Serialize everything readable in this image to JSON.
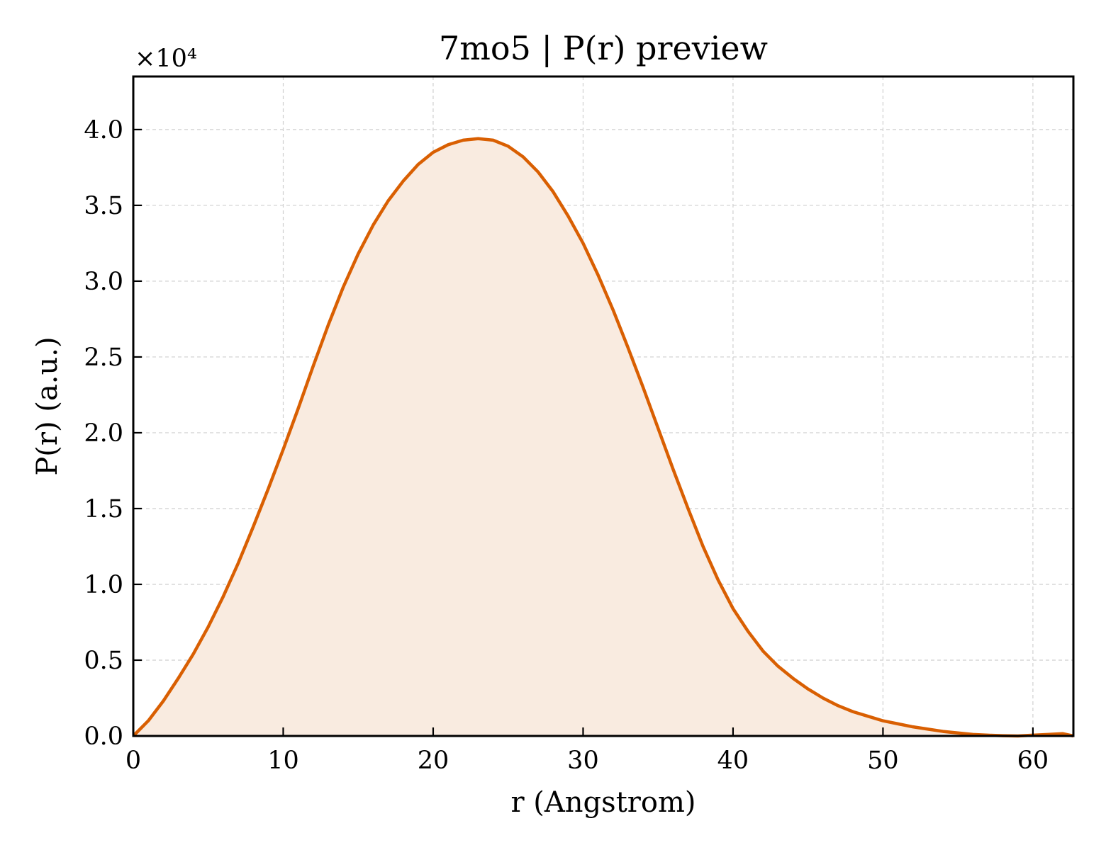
{
  "chart_data": {
    "type": "area",
    "title": "7mo5 | P(r) preview",
    "xlabel": "r (Angstrom)",
    "ylabel": "P(r) (a.u.)",
    "y_multiplier_label": "×10⁴",
    "xlim": [
      0,
      62.7
    ],
    "ylim": [
      0,
      4.35
    ],
    "xticks": [
      0,
      10,
      20,
      30,
      40,
      50,
      60
    ],
    "xtick_labels": [
      "0",
      "10",
      "20",
      "30",
      "40",
      "50",
      "60"
    ],
    "yticks": [
      0,
      0.5,
      1.0,
      1.5,
      2.0,
      2.5,
      3.0,
      3.5,
      4.0
    ],
    "ytick_labels": [
      "0.0",
      "0.5",
      "1.0",
      "1.5",
      "2.0",
      "2.5",
      "3.0",
      "3.5",
      "4.0"
    ],
    "grid": true,
    "line_color": "#d95f02",
    "fill_color": "#f9ebe0",
    "series": [
      {
        "x": [
          0,
          1,
          2,
          3,
          4,
          5,
          6,
          7,
          8,
          9,
          10,
          11,
          12,
          13,
          14,
          15,
          16,
          17,
          18,
          19,
          20,
          21,
          22,
          23,
          24,
          25,
          26,
          27,
          28,
          29,
          30,
          31,
          32,
          33,
          34,
          35,
          36,
          37,
          38,
          39,
          40,
          41,
          42,
          43,
          44,
          45,
          46,
          47,
          48,
          49,
          50,
          51,
          52,
          53,
          54,
          55,
          56,
          57,
          58,
          59,
          60,
          61,
          62,
          62.7
        ],
        "y": [
          0.0,
          0.1,
          0.23,
          0.38,
          0.54,
          0.72,
          0.92,
          1.14,
          1.38,
          1.63,
          1.89,
          2.16,
          2.44,
          2.71,
          2.96,
          3.18,
          3.37,
          3.53,
          3.66,
          3.77,
          3.85,
          3.9,
          3.93,
          3.94,
          3.93,
          3.89,
          3.82,
          3.72,
          3.59,
          3.43,
          3.25,
          3.04,
          2.81,
          2.56,
          2.3,
          2.03,
          1.76,
          1.5,
          1.25,
          1.03,
          0.84,
          0.69,
          0.56,
          0.46,
          0.38,
          0.31,
          0.25,
          0.2,
          0.16,
          0.13,
          0.1,
          0.08,
          0.06,
          0.045,
          0.03,
          0.02,
          0.01,
          0.005,
          0.002,
          0.0,
          0.005,
          0.01,
          0.015,
          0.0
        ]
      }
    ]
  }
}
